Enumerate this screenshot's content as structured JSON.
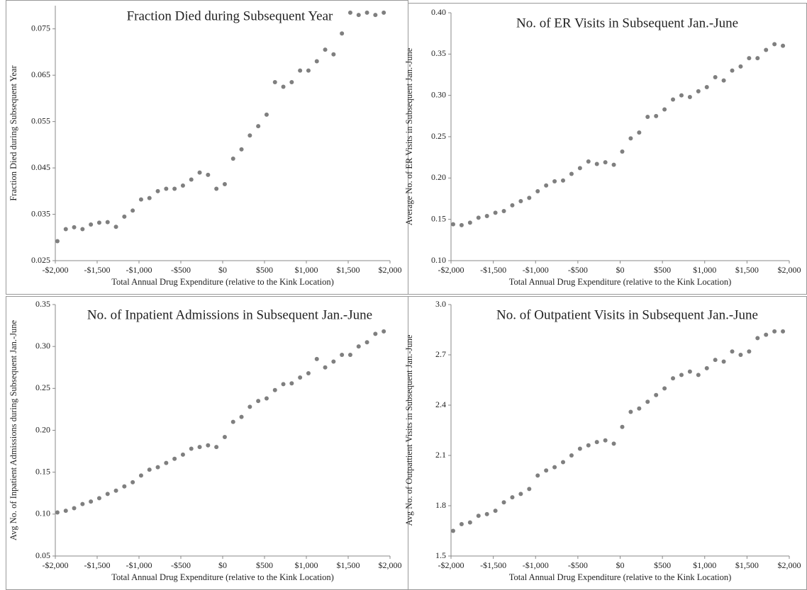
{
  "chart_data": [
    {
      "type": "scatter",
      "title": "Fraction Died during Subsequent  Year",
      "xlabel": "Total Annual Drug Expenditure (relative to the Kink Location)",
      "ylabel": "Fraction Died during Subsequent Year",
      "color": "#7f7f7f",
      "xlim": [
        -2000,
        2000
      ],
      "xticks": [
        {
          "value": -2000,
          "label": "-$2,000"
        },
        {
          "value": -1500,
          "label": "-$1,500"
        },
        {
          "value": -1000,
          "label": "-$1,000"
        },
        {
          "value": -500,
          "label": "-$500"
        },
        {
          "value": 0,
          "label": "$0"
        },
        {
          "value": 500,
          "label": "$500"
        },
        {
          "value": 1000,
          "label": "$1,000"
        },
        {
          "value": 1500,
          "label": "$1,500"
        },
        {
          "value": 2000,
          "label": "$2,000"
        }
      ],
      "ylim": [
        0.025,
        0.08
      ],
      "yticks": [
        0.025,
        0.035,
        0.045,
        0.055,
        0.065,
        0.075
      ],
      "x": [
        -1975,
        -1875,
        -1775,
        -1675,
        -1575,
        -1475,
        -1375,
        -1275,
        -1175,
        -1075,
        -975,
        -875,
        -775,
        -675,
        -575,
        -475,
        -375,
        -275,
        -175,
        -75,
        25,
        125,
        225,
        325,
        425,
        525,
        625,
        725,
        825,
        925,
        1025,
        1125,
        1225,
        1325,
        1425,
        1525,
        1625,
        1725,
        1825,
        1925
      ],
      "values": [
        0.0292,
        0.0318,
        0.0322,
        0.0318,
        0.0328,
        0.0332,
        0.0333,
        0.0323,
        0.0345,
        0.0358,
        0.0382,
        0.0385,
        0.04,
        0.0405,
        0.0405,
        0.0412,
        0.0425,
        0.044,
        0.0435,
        0.0405,
        0.0415,
        0.047,
        0.049,
        0.052,
        0.054,
        0.0565,
        0.0635,
        0.0625,
        0.0635,
        0.066,
        0.066,
        0.068,
        0.0705,
        0.0695,
        0.074,
        0.0785,
        0.078,
        0.0785,
        0.078,
        0.0785
      ]
    },
    {
      "type": "scatter",
      "title": "No. of ER Visits in Subsequent Jan.-June",
      "xlabel": "Total Annual Drug Expenditure (relative to the Kink Location)",
      "ylabel": "Average No. of ER Visits in Subsequent  Jan.-June",
      "color": "#7f7f7f",
      "xlim": [
        -2000,
        2000
      ],
      "xticks": [
        {
          "value": -2000,
          "label": "-$2,000"
        },
        {
          "value": -1500,
          "label": "-$1,500"
        },
        {
          "value": -1000,
          "label": "-$1,000"
        },
        {
          "value": -500,
          "label": "-$500"
        },
        {
          "value": 0,
          "label": "$0"
        },
        {
          "value": 500,
          "label": "$500"
        },
        {
          "value": 1000,
          "label": "$1,000"
        },
        {
          "value": 1500,
          "label": "$1,500"
        },
        {
          "value": 2000,
          "label": "$2,000"
        }
      ],
      "ylim": [
        0.1,
        0.4
      ],
      "yticks": [
        {
          "value": 0.1,
          "label": "0.10"
        },
        0.15,
        {
          "value": 0.2,
          "label": "0.20"
        },
        0.25,
        {
          "value": 0.3,
          "label": "0.30"
        },
        0.35,
        {
          "value": 0.4,
          "label": "0.40"
        }
      ],
      "x": [
        -1975,
        -1875,
        -1775,
        -1675,
        -1575,
        -1475,
        -1375,
        -1275,
        -1175,
        -1075,
        -975,
        -875,
        -775,
        -675,
        -575,
        -475,
        -375,
        -275,
        -175,
        -75,
        25,
        125,
        225,
        325,
        425,
        525,
        625,
        725,
        825,
        925,
        1025,
        1125,
        1225,
        1325,
        1425,
        1525,
        1625,
        1725,
        1825,
        1925
      ],
      "values": [
        0.144,
        0.143,
        0.146,
        0.152,
        0.154,
        0.158,
        0.16,
        0.167,
        0.172,
        0.176,
        0.184,
        0.191,
        0.196,
        0.197,
        0.205,
        0.212,
        0.22,
        0.217,
        0.219,
        0.216,
        0.232,
        0.248,
        0.255,
        0.274,
        0.275,
        0.283,
        0.295,
        0.3,
        0.298,
        0.305,
        0.31,
        0.322,
        0.318,
        0.33,
        0.335,
        0.345,
        0.345,
        0.355,
        0.362,
        0.36
      ]
    },
    {
      "type": "scatter",
      "title": "No. of Inpatient Admissions  in Subsequent Jan.-June",
      "xlabel": "Total Annual Drug Expenditure (relative to the Kink Location)",
      "ylabel": "Avg No. of Inpatient Admissions during Subsequent Jan.-June",
      "color": "#7f7f7f",
      "xlim": [
        -2000,
        2000
      ],
      "xticks": [
        {
          "value": -2000,
          "label": "-$2,000"
        },
        {
          "value": -1500,
          "label": "-$1,500"
        },
        {
          "value": -1000,
          "label": "-$1,000"
        },
        {
          "value": -500,
          "label": "-$500"
        },
        {
          "value": 0,
          "label": "$0"
        },
        {
          "value": 500,
          "label": "$500"
        },
        {
          "value": 1000,
          "label": "$1,000"
        },
        {
          "value": 1500,
          "label": "$1,500"
        },
        {
          "value": 2000,
          "label": "$2,000"
        }
      ],
      "ylim": [
        0.05,
        0.35
      ],
      "yticks": [
        0.05,
        {
          "value": 0.1,
          "label": "0.10"
        },
        0.15,
        {
          "value": 0.2,
          "label": "0.20"
        },
        0.25,
        {
          "value": 0.3,
          "label": "0.30"
        },
        0.35
      ],
      "x": [
        -1975,
        -1875,
        -1775,
        -1675,
        -1575,
        -1475,
        -1375,
        -1275,
        -1175,
        -1075,
        -975,
        -875,
        -775,
        -675,
        -575,
        -475,
        -375,
        -275,
        -175,
        -75,
        25,
        125,
        225,
        325,
        425,
        525,
        625,
        725,
        825,
        925,
        1025,
        1125,
        1225,
        1325,
        1425,
        1525,
        1625,
        1725,
        1825,
        1925
      ],
      "values": [
        0.102,
        0.104,
        0.107,
        0.112,
        0.115,
        0.119,
        0.124,
        0.128,
        0.133,
        0.138,
        0.146,
        0.153,
        0.156,
        0.161,
        0.166,
        0.171,
        0.178,
        0.18,
        0.182,
        0.18,
        0.192,
        0.21,
        0.216,
        0.228,
        0.235,
        0.238,
        0.248,
        0.255,
        0.256,
        0.263,
        0.268,
        0.285,
        0.275,
        0.282,
        0.29,
        0.29,
        0.3,
        0.305,
        0.315,
        0.318
      ]
    },
    {
      "type": "scatter",
      "title": "No. of Outpatient Visits in Subsequent Jan.-June",
      "xlabel": "Total Annual Drug Expenditure (relative to the Kink Location)",
      "ylabel": "Avg No. of Outpattient Visits in Subsequent Jan.-June",
      "color": "#7f7f7f",
      "xlim": [
        -2000,
        2000
      ],
      "xticks": [
        {
          "value": -2000,
          "label": "-$2,000"
        },
        {
          "value": -1500,
          "label": "-$1,500"
        },
        {
          "value": -1000,
          "label": "-$1,000"
        },
        {
          "value": -500,
          "label": "-$500"
        },
        {
          "value": 0,
          "label": "$0"
        },
        {
          "value": 500,
          "label": "$500"
        },
        {
          "value": 1000,
          "label": "$1,000"
        },
        {
          "value": 1500,
          "label": "$1,500"
        },
        {
          "value": 2000,
          "label": "$2,000"
        }
      ],
      "ylim": [
        1.5,
        3.0
      ],
      "yticks": [
        1.5,
        1.8,
        2.1,
        2.4,
        2.7,
        {
          "value": 3.0,
          "label": "3.0"
        }
      ],
      "x": [
        -1975,
        -1875,
        -1775,
        -1675,
        -1575,
        -1475,
        -1375,
        -1275,
        -1175,
        -1075,
        -975,
        -875,
        -775,
        -675,
        -575,
        -475,
        -375,
        -275,
        -175,
        -75,
        25,
        125,
        225,
        325,
        425,
        525,
        625,
        725,
        825,
        925,
        1025,
        1125,
        1225,
        1325,
        1425,
        1525,
        1625,
        1725,
        1825,
        1925
      ],
      "values": [
        1.65,
        1.69,
        1.7,
        1.74,
        1.75,
        1.77,
        1.82,
        1.85,
        1.87,
        1.9,
        1.98,
        2.01,
        2.03,
        2.06,
        2.1,
        2.14,
        2.16,
        2.18,
        2.19,
        2.17,
        2.27,
        2.36,
        2.38,
        2.42,
        2.46,
        2.5,
        2.56,
        2.58,
        2.6,
        2.58,
        2.62,
        2.67,
        2.66,
        2.72,
        2.7,
        2.72,
        2.8,
        2.82,
        2.84,
        2.84
      ]
    }
  ]
}
